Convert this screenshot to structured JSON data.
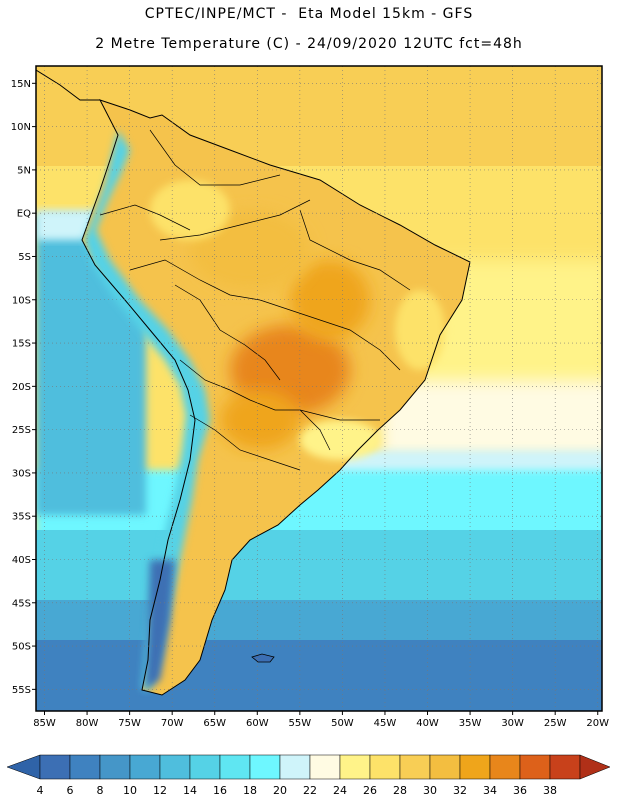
{
  "header": {
    "line1": "CPTEC/INPE/MCT -  Eta Model 15km - GFS",
    "line2": "2 Metre Temperature (C) - 24/09/2020 12UTC fct=48h"
  },
  "map": {
    "lon_range": [
      -86,
      -19.5
    ],
    "lat_range": [
      -57.5,
      17
    ],
    "lat_ticks": [
      {
        "label": "15N",
        "lat": 15
      },
      {
        "label": "10N",
        "lat": 10
      },
      {
        "label": "5N",
        "lat": 5
      },
      {
        "label": "EQ",
        "lat": 0
      },
      {
        "label": "5S",
        "lat": -5
      },
      {
        "label": "10S",
        "lat": -10
      },
      {
        "label": "15S",
        "lat": -15
      },
      {
        "label": "20S",
        "lat": -20
      },
      {
        "label": "25S",
        "lat": -25
      },
      {
        "label": "30S",
        "lat": -30
      },
      {
        "label": "35S",
        "lat": -35
      },
      {
        "label": "40S",
        "lat": -40
      },
      {
        "label": "45S",
        "lat": -45
      },
      {
        "label": "50S",
        "lat": -50
      },
      {
        "label": "55S",
        "lat": -55
      }
    ],
    "lon_ticks": [
      {
        "label": "85W",
        "lon": -85
      },
      {
        "label": "80W",
        "lon": -80
      },
      {
        "label": "75W",
        "lon": -75
      },
      {
        "label": "70W",
        "lon": -70
      },
      {
        "label": "65W",
        "lon": -65
      },
      {
        "label": "60W",
        "lon": -60
      },
      {
        "label": "55W",
        "lon": -55
      },
      {
        "label": "50W",
        "lon": -50
      },
      {
        "label": "45W",
        "lon": -45
      },
      {
        "label": "40W",
        "lon": -40
      },
      {
        "label": "35W",
        "lon": -35
      },
      {
        "label": "30W",
        "lon": -30
      },
      {
        "label": "25W",
        "lon": -25
      },
      {
        "label": "20W",
        "lon": -20
      }
    ]
  },
  "colorbar": {
    "labels": [
      "4",
      "6",
      "8",
      "10",
      "12",
      "14",
      "16",
      "18",
      "20",
      "22",
      "24",
      "26",
      "28",
      "30",
      "32",
      "34",
      "36",
      "38"
    ],
    "colors": [
      "#3c6fb4",
      "#3f82c0",
      "#4596c8",
      "#48a8d3",
      "#4fbedd",
      "#55d2e6",
      "#5fe6f2",
      "#6ef7ff",
      "#cff4fa",
      "#fffbe3",
      "#fff389",
      "#fde269",
      "#f8ce55",
      "#f3be40",
      "#efa51b",
      "#e8861b",
      "#dd611a",
      "#c8411b"
    ],
    "left_arrow_color": "#2f63a8",
    "right_arrow_color": "#b03018"
  },
  "palette": {
    "ocean_warm": "#ffd86a",
    "ocean_mid": "#fdf0a6",
    "land_base": "#f5c34c",
    "hot_core": "#e8861b",
    "cool_band": "#cff4fa",
    "cold_pacific": "#4fbedd",
    "cold_south": "#3f82c0",
    "coldest": "#3c6fb4"
  }
}
